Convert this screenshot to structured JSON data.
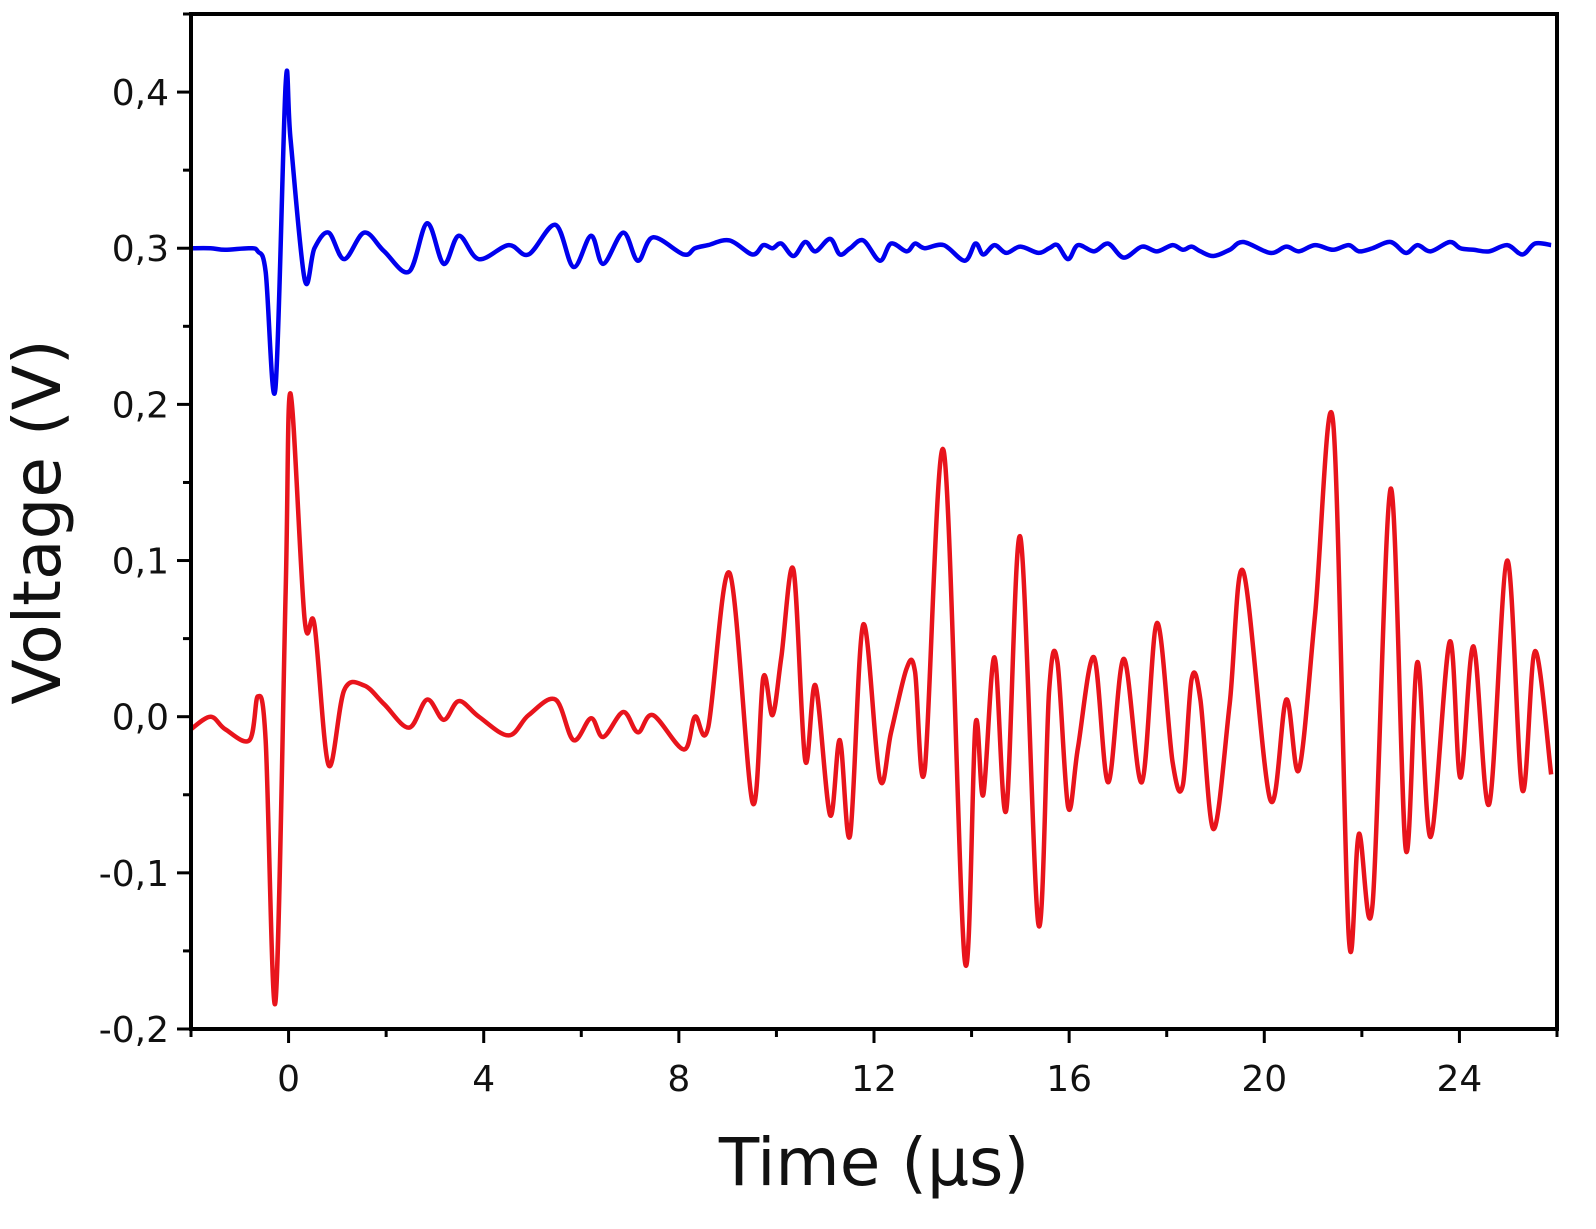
{
  "chart_data": {
    "type": "line",
    "xlabel": "Time  (μs)",
    "ylabel": "Voltage  (V)",
    "xlim": [
      -2,
      26
    ],
    "ylim": [
      -0.2,
      0.45
    ],
    "xticks": [
      0,
      4,
      8,
      12,
      16,
      20,
      24
    ],
    "yticks": [
      {
        "value": -0.2,
        "label": "-0,2"
      },
      {
        "value": -0.1,
        "label": "-0,1"
      },
      {
        "value": 0.0,
        "label": "0,0"
      },
      {
        "value": 0.1,
        "label": "0,1"
      },
      {
        "value": 0.2,
        "label": "0,2"
      },
      {
        "value": 0.3,
        "label": "0,3"
      },
      {
        "value": 0.4,
        "label": "0,4"
      }
    ],
    "grid": false,
    "x": [
      -2,
      -1.6,
      -1.3,
      -0.8,
      -0.63,
      -0.47,
      -0.27,
      -0.06,
      0.04,
      0.33,
      0.53,
      0.82,
      1.14,
      1.55,
      1.96,
      2.47,
      2.84,
      3.18,
      3.49,
      3.9,
      4.51,
      4.92,
      5.47,
      5.84,
      6.2,
      6.45,
      6.86,
      7.16,
      7.47,
      8.1,
      8.33,
      8.6,
      9.04,
      9.51,
      9.73,
      9.92,
      10.1,
      10.35,
      10.59,
      10.8,
      11.1,
      11.3,
      11.51,
      11.78,
      12.12,
      12.35,
      12.67,
      12.84,
      13.04,
      13.43,
      13.86,
      14.08,
      14.24,
      14.47,
      14.71,
      15.0,
      15.37,
      15.59,
      15.76,
      15.98,
      16.18,
      16.51,
      16.8,
      17.12,
      17.49,
      17.8,
      18.12,
      18.33,
      18.51,
      18.69,
      18.96,
      19.29,
      19.57,
      20.12,
      20.45,
      20.71,
      21.04,
      21.41,
      21.73,
      21.94,
      22.22,
      22.59,
      22.9,
      23.14,
      23.41,
      23.8,
      24.02,
      24.29,
      24.61,
      24.98,
      25.29,
      25.55,
      25.88
    ],
    "series": [
      {
        "color": "#0000ee",
        "values": [
          0.3,
          0.3,
          0.299,
          0.3,
          0.298,
          0.285,
          0.21,
          0.405,
          0.37,
          0.28,
          0.3,
          0.31,
          0.293,
          0.31,
          0.298,
          0.285,
          0.316,
          0.29,
          0.308,
          0.293,
          0.302,
          0.296,
          0.315,
          0.288,
          0.308,
          0.29,
          0.31,
          0.292,
          0.307,
          0.296,
          0.3,
          0.302,
          0.305,
          0.296,
          0.302,
          0.3,
          0.303,
          0.295,
          0.304,
          0.298,
          0.306,
          0.296,
          0.3,
          0.305,
          0.292,
          0.303,
          0.298,
          0.303,
          0.3,
          0.302,
          0.292,
          0.303,
          0.296,
          0.302,
          0.297,
          0.301,
          0.297,
          0.3,
          0.302,
          0.293,
          0.302,
          0.298,
          0.303,
          0.294,
          0.301,
          0.298,
          0.302,
          0.299,
          0.301,
          0.298,
          0.295,
          0.299,
          0.304,
          0.297,
          0.301,
          0.298,
          0.302,
          0.299,
          0.302,
          0.298,
          0.3,
          0.304,
          0.297,
          0.302,
          0.298,
          0.304,
          0.3,
          0.299,
          0.298,
          0.302,
          0.296,
          0.303,
          0.302
        ]
      },
      {
        "color": "#e8141c",
        "values": [
          -0.008,
          0,
          -0.008,
          -0.015,
          0.013,
          -0.015,
          -0.183,
          0.08,
          0.207,
          0.062,
          0.059,
          -0.031,
          0.017,
          0.02,
          0.008,
          -0.007,
          0.011,
          -0.002,
          0.01,
          0,
          -0.012,
          0.001,
          0.011,
          -0.015,
          -0.001,
          -0.013,
          0.003,
          -0.01,
          0.001,
          -0.021,
          0,
          -0.007,
          0.092,
          -0.055,
          0.025,
          0.001,
          0.038,
          0.094,
          -0.028,
          0.02,
          -0.063,
          -0.015,
          -0.076,
          0.059,
          -0.04,
          -0.01,
          0.031,
          0.029,
          -0.034,
          0.17,
          -0.156,
          -0.005,
          -0.05,
          0.038,
          -0.06,
          0.115,
          -0.133,
          0.017,
          0.035,
          -0.058,
          -0.02,
          0.038,
          -0.042,
          0.037,
          -0.042,
          0.06,
          -0.029,
          -0.044,
          0.024,
          0.011,
          -0.072,
          0.008,
          0.093,
          -0.053,
          0.011,
          -0.034,
          0.065,
          0.189,
          -0.14,
          -0.075,
          -0.12,
          0.146,
          -0.085,
          0.035,
          -0.077,
          0.048,
          -0.039,
          0.045,
          -0.056,
          0.1,
          -0.047,
          0.042,
          -0.037
        ]
      }
    ]
  }
}
